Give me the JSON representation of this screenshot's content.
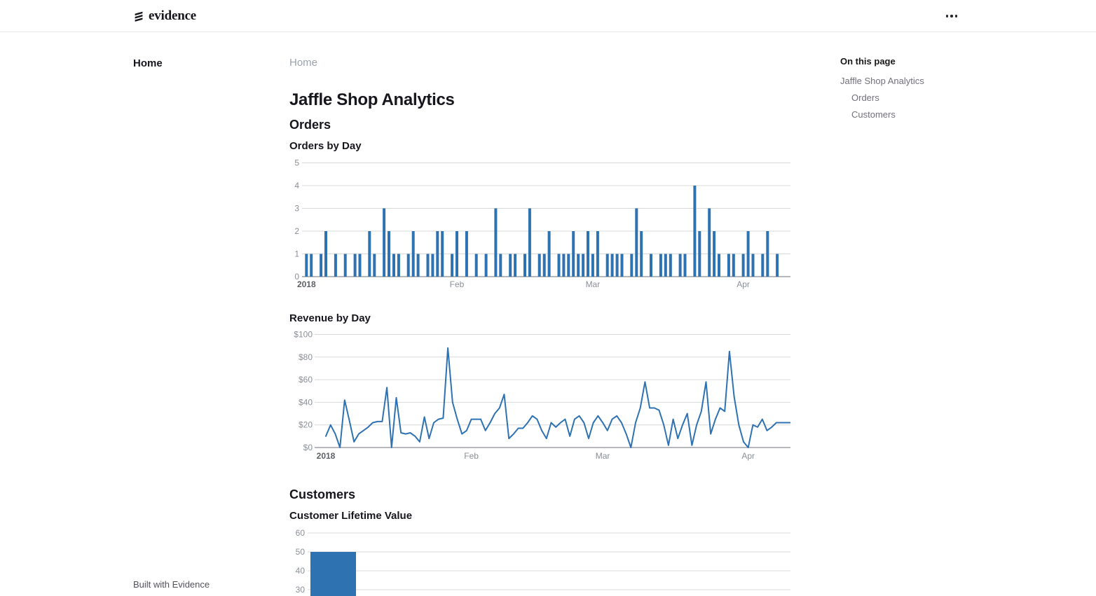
{
  "header": {
    "logo_text": "evidence",
    "menu_icon": "ellipsis-icon"
  },
  "sidebar": {
    "items": [
      {
        "label": "Home",
        "active": true
      }
    ],
    "footer_label": "Built with Evidence"
  },
  "breadcrumb": {
    "label": "Home"
  },
  "page": {
    "title": "Jaffle Shop Analytics"
  },
  "sections": [
    {
      "heading": "Orders"
    },
    {
      "heading": "Customers"
    }
  ],
  "toc": {
    "title": "On this page",
    "items": [
      {
        "label": "Jaffle Shop Analytics",
        "level": 1
      },
      {
        "label": "Orders",
        "level": 2
      },
      {
        "label": "Customers",
        "level": 2
      }
    ]
  },
  "colors": {
    "accent": "#2e72b2",
    "grid": "#d9d9d9",
    "axis": "#6e7079",
    "tick_label": "#8a8f98",
    "tick_label_emphasis": "#5d6166"
  },
  "chart_data": [
    {
      "type": "bar",
      "title": "Orders by Day",
      "x_unit": "day",
      "x_start": "2018-01-01",
      "x_ticks": [
        {
          "label": "2018",
          "day": 0,
          "emphasis": true
        },
        {
          "label": "Feb",
          "day": 31
        },
        {
          "label": "Mar",
          "day": 59
        },
        {
          "label": "Apr",
          "day": 90
        }
      ],
      "ylim": [
        0,
        5
      ],
      "y_ticks": [
        0,
        1,
        2,
        3,
        4,
        5
      ],
      "values": [
        1,
        1,
        0,
        1,
        2,
        0,
        1,
        0,
        1,
        0,
        1,
        1,
        0,
        2,
        1,
        0,
        3,
        2,
        1,
        1,
        0,
        1,
        2,
        1,
        0,
        1,
        1,
        2,
        2,
        0,
        1,
        2,
        0,
        2,
        0,
        1,
        0,
        1,
        0,
        3,
        1,
        0,
        1,
        1,
        0,
        1,
        3,
        0,
        1,
        1,
        2,
        0,
        1,
        1,
        1,
        2,
        1,
        1,
        2,
        1,
        2,
        0,
        1,
        1,
        1,
        1,
        0,
        1,
        3,
        2,
        0,
        1,
        0,
        1,
        1,
        1,
        0,
        1,
        1,
        0,
        4,
        2,
        0,
        3,
        2,
        1,
        0,
        1,
        1,
        0,
        1,
        2,
        1,
        0,
        1,
        2,
        0,
        1,
        0,
        0
      ]
    },
    {
      "type": "line",
      "title": "Revenue by Day",
      "x_unit": "day",
      "x_start": "2018-01-01",
      "x_ticks": [
        {
          "label": "2018",
          "day": 0,
          "emphasis": true
        },
        {
          "label": "Feb",
          "day": 31
        },
        {
          "label": "Mar",
          "day": 59
        },
        {
          "label": "Apr",
          "day": 90
        }
      ],
      "ylim": [
        0,
        100
      ],
      "y_ticks": [
        {
          "value": 0,
          "label": "$0"
        },
        {
          "value": 20,
          "label": "$20"
        },
        {
          "value": 40,
          "label": "$40"
        },
        {
          "value": 60,
          "label": "$60"
        },
        {
          "value": 80,
          "label": "$80"
        },
        {
          "value": 100,
          "label": "$100"
        }
      ],
      "values": [
        10,
        20,
        12,
        0,
        42,
        24,
        5,
        12,
        15,
        18,
        22,
        23,
        23,
        53,
        0,
        44,
        13,
        12,
        13,
        10,
        5,
        27,
        8,
        22,
        25,
        26,
        88,
        40,
        25,
        12,
        15,
        25,
        25,
        25,
        15,
        22,
        30,
        35,
        47,
        8,
        12,
        17,
        17,
        22,
        28,
        25,
        15,
        8,
        22,
        18,
        22,
        25,
        10,
        25,
        28,
        22,
        8,
        22,
        28,
        22,
        15,
        25,
        28,
        22,
        12,
        0,
        22,
        35,
        58,
        35,
        35,
        33,
        20,
        2,
        25,
        8,
        20,
        30,
        2,
        20,
        32,
        58,
        12,
        25,
        35,
        32,
        85,
        45,
        20,
        5,
        0,
        20,
        18,
        25,
        15,
        18,
        22,
        22,
        22,
        22
      ]
    },
    {
      "type": "bar",
      "title": "Customer Lifetime Value",
      "visible_y_ticks": [
        60,
        50,
        40,
        30
      ],
      "visible_values": [
        50
      ],
      "clipped_at_viewport_bottom": true
    }
  ]
}
